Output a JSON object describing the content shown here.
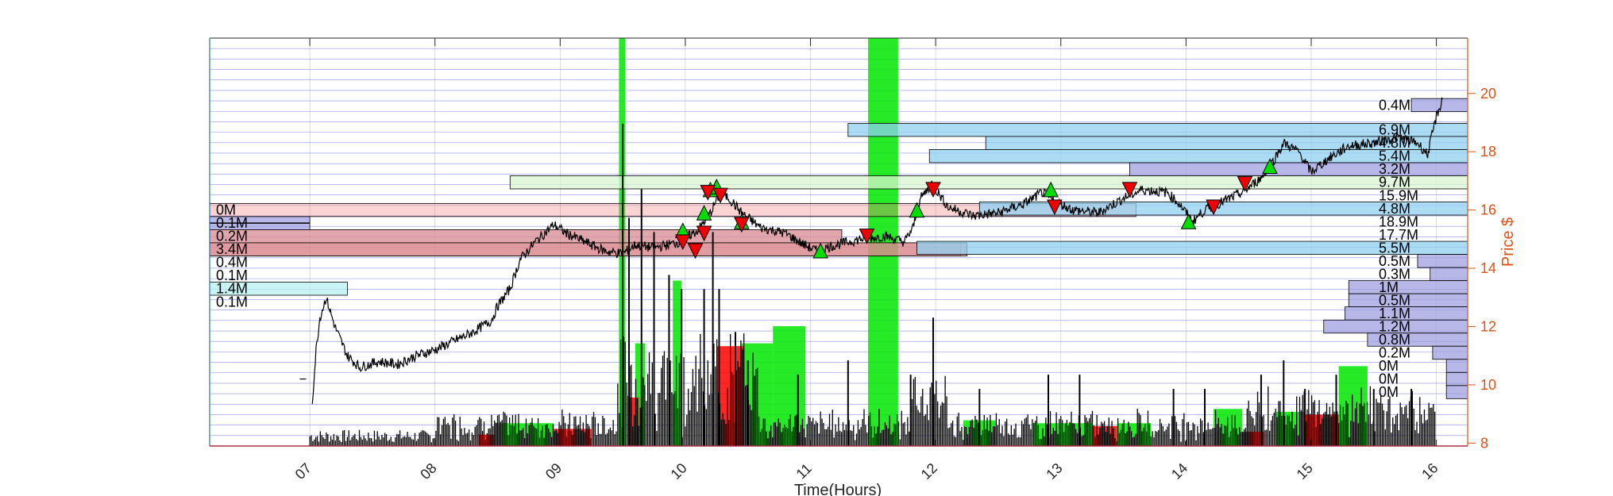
{
  "chart_data": {
    "type": "line",
    "title": "",
    "xlabel": "Time(Hours)",
    "ylabel": "Price $",
    "x_ticks": [
      "07",
      "08",
      "09",
      "10",
      "11",
      "12",
      "13",
      "14",
      "15",
      "16"
    ],
    "y_ticks": [
      "8",
      "10",
      "12",
      "14",
      "16",
      "18",
      "20"
    ],
    "xlim": [
      6.2,
      16.25
    ],
    "ylim": [
      7.9,
      21.9
    ],
    "grid": true,
    "colors": {
      "axes": "#2F6FA8",
      "right_axis": "#D95319",
      "grid": "#3333CC",
      "price": "#000000",
      "volume": "#000000",
      "buy_zone": "#00E600",
      "sell_zone": "#FF0000",
      "profile_sell": "#F08080",
      "profile_buy": "#8FD0F0",
      "profile_neutral": "#A0A0E0",
      "triangle_up": "#00DD00",
      "triangle_down": "#EE0000"
    },
    "price_anchors": [
      [
        7.02,
        9.4
      ],
      [
        7.05,
        11.2
      ],
      [
        7.08,
        12.3
      ],
      [
        7.13,
        13.0
      ],
      [
        7.2,
        12.0
      ],
      [
        7.3,
        11.0
      ],
      [
        7.4,
        10.6
      ],
      [
        7.55,
        10.8
      ],
      [
        7.7,
        10.7
      ],
      [
        7.85,
        11.0
      ],
      [
        8.0,
        11.2
      ],
      [
        8.15,
        11.5
      ],
      [
        8.3,
        11.8
      ],
      [
        8.45,
        12.2
      ],
      [
        8.5,
        12.7
      ],
      [
        8.6,
        13.3
      ],
      [
        8.68,
        14.3
      ],
      [
        8.8,
        14.9
      ],
      [
        8.95,
        15.5
      ],
      [
        9.05,
        15.2
      ],
      [
        9.2,
        14.9
      ],
      [
        9.35,
        14.6
      ],
      [
        9.5,
        14.5
      ],
      [
        9.6,
        14.8
      ],
      [
        9.75,
        14.7
      ],
      [
        9.95,
        14.9
      ],
      [
        10.1,
        15.3
      ],
      [
        10.2,
        15.9
      ],
      [
        10.28,
        16.6
      ],
      [
        10.35,
        16.4
      ],
      [
        10.45,
        15.9
      ],
      [
        10.6,
        15.4
      ],
      [
        10.8,
        15.2
      ],
      [
        10.95,
        14.8
      ],
      [
        11.05,
        14.6
      ],
      [
        11.2,
        14.8
      ],
      [
        11.4,
        15.0
      ],
      [
        11.6,
        15.1
      ],
      [
        11.75,
        14.9
      ],
      [
        11.82,
        15.4
      ],
      [
        11.88,
        16.4
      ],
      [
        11.97,
        16.9
      ],
      [
        12.1,
        16.1
      ],
      [
        12.3,
        15.8
      ],
      [
        12.5,
        15.9
      ],
      [
        12.7,
        16.2
      ],
      [
        12.85,
        16.6
      ],
      [
        12.95,
        16.3
      ],
      [
        13.1,
        16.0
      ],
      [
        13.3,
        15.9
      ],
      [
        13.5,
        16.4
      ],
      [
        13.65,
        16.7
      ],
      [
        13.85,
        16.6
      ],
      [
        13.95,
        16.2
      ],
      [
        14.05,
        15.6
      ],
      [
        14.15,
        16.0
      ],
      [
        14.3,
        16.3
      ],
      [
        14.45,
        16.6
      ],
      [
        14.6,
        17.1
      ],
      [
        14.7,
        17.7
      ],
      [
        14.78,
        18.3
      ],
      [
        14.9,
        18.0
      ],
      [
        15.0,
        17.3
      ],
      [
        15.15,
        17.8
      ],
      [
        15.3,
        18.2
      ],
      [
        15.5,
        18.3
      ],
      [
        15.7,
        18.5
      ],
      [
        15.85,
        18.3
      ],
      [
        15.93,
        17.9
      ],
      [
        16.0,
        19.2
      ],
      [
        16.05,
        19.8
      ]
    ],
    "volume_zones": [
      {
        "side": "buy",
        "x0": 9.47,
        "x1": 9.52,
        "volume": 14.3
      },
      {
        "side": "buy",
        "x0": 11.46,
        "x1": 11.7,
        "volume": 14.3
      },
      {
        "side": "buy",
        "x0": 9.9,
        "x1": 9.97,
        "volume": 5.8
      },
      {
        "side": "buy",
        "x0": 9.6,
        "x1": 9.68,
        "volume": 3.6
      },
      {
        "side": "buy",
        "x0": 10.45,
        "x1": 10.7,
        "volume": 3.6
      },
      {
        "side": "buy",
        "x0": 10.7,
        "x1": 10.96,
        "volume": 4.2
      },
      {
        "side": "sell",
        "x0": 10.25,
        "x1": 10.47,
        "volume": 3.5
      },
      {
        "side": "sell",
        "x0": 9.55,
        "x1": 9.63,
        "volume": 1.7
      },
      {
        "side": "buy",
        "x0": 15.22,
        "x1": 15.45,
        "volume": 2.8
      },
      {
        "side": "sell",
        "x0": 14.95,
        "x1": 15.22,
        "volume": 1.1
      },
      {
        "side": "buy",
        "x0": 14.72,
        "x1": 14.95,
        "volume": 1.2
      },
      {
        "side": "buy",
        "x0": 14.22,
        "x1": 14.45,
        "volume": 1.3
      },
      {
        "side": "sell",
        "x0": 14.45,
        "x1": 14.62,
        "volume": 0.5
      },
      {
        "side": "buy",
        "x0": 13.45,
        "x1": 13.72,
        "volume": 0.8
      },
      {
        "side": "sell",
        "x0": 13.25,
        "x1": 13.45,
        "volume": 0.7
      },
      {
        "side": "buy",
        "x0": 12.78,
        "x1": 13.25,
        "volume": 0.8
      },
      {
        "side": "buy",
        "x0": 12.22,
        "x1": 12.48,
        "volume": 0.9
      },
      {
        "side": "buy",
        "x0": 8.48,
        "x1": 8.95,
        "volume": 0.8
      },
      {
        "side": "sell",
        "x0": 8.95,
        "x1": 9.25,
        "volume": 0.6
      },
      {
        "side": "sell",
        "x0": 8.35,
        "x1": 8.48,
        "volume": 0.4
      }
    ],
    "volume_spikes": [
      [
        9.5,
        11.3
      ],
      [
        9.55,
        8.0
      ],
      [
        9.65,
        9.0
      ],
      [
        9.75,
        7.5
      ],
      [
        9.87,
        6.0
      ],
      [
        9.97,
        5.5
      ],
      [
        10.15,
        5.5
      ],
      [
        10.22,
        7.5
      ],
      [
        10.27,
        5.5
      ],
      [
        10.4,
        4.0
      ],
      [
        10.5,
        3.0
      ],
      [
        10.9,
        2.5
      ],
      [
        11.3,
        3.0
      ],
      [
        11.8,
        2.5
      ],
      [
        11.98,
        4.5
      ],
      [
        12.35,
        2.0
      ],
      [
        12.9,
        2.5
      ],
      [
        13.15,
        2.5
      ],
      [
        13.9,
        2.0
      ],
      [
        14.15,
        2.0
      ],
      [
        14.6,
        2.5
      ],
      [
        14.78,
        3.0
      ],
      [
        14.95,
        2.0
      ],
      [
        15.2,
        2.5
      ],
      [
        15.5,
        2.0
      ],
      [
        15.8,
        2.0
      ]
    ],
    "triangles_up": [
      [
        9.98,
        15.3
      ],
      [
        10.15,
        15.9
      ],
      [
        10.2,
        16.7
      ],
      [
        10.25,
        16.8
      ],
      [
        10.45,
        15.6
      ],
      [
        11.08,
        14.6
      ],
      [
        11.85,
        16.0
      ],
      [
        12.92,
        16.7
      ],
      [
        14.02,
        15.6
      ],
      [
        14.67,
        17.5
      ]
    ],
    "triangles_down": [
      [
        9.98,
        14.9
      ],
      [
        10.08,
        14.6
      ],
      [
        10.15,
        15.2
      ],
      [
        10.18,
        16.6
      ],
      [
        10.28,
        16.5
      ],
      [
        10.45,
        15.5
      ],
      [
        11.45,
        15.1
      ],
      [
        11.98,
        16.7
      ],
      [
        12.95,
        16.1
      ],
      [
        13.55,
        16.7
      ],
      [
        14.22,
        16.1
      ],
      [
        14.47,
        16.9
      ]
    ],
    "left_profile": [
      {
        "label": "0M",
        "price": 16.0,
        "width": 0.0,
        "color": "sell"
      },
      {
        "label": "0.1M",
        "price": 15.55,
        "width": 0.8,
        "color": "neutral"
      },
      {
        "label": "0.2M",
        "price": 15.1,
        "width": 5.05,
        "color": "sell_dark"
      },
      {
        "label": "3.4M",
        "price": 14.65,
        "width": 6.05,
        "color": "sell_dark"
      },
      {
        "label": "0.4M",
        "price": 14.2,
        "width": 0.0,
        "color": "neutral"
      },
      {
        "label": "0.1M",
        "price": 13.75,
        "width": 0.0,
        "color": "neutral"
      },
      {
        "label": "1.4M",
        "price": 13.3,
        "width": 1.1,
        "color": "buy_light"
      },
      {
        "label": "0.1M",
        "price": 12.85,
        "width": 0.0,
        "color": "neutral"
      }
    ],
    "left_highlight_bars": [
      {
        "price": 16.0,
        "x1": 13.6,
        "color": "sell"
      },
      {
        "price": 14.65,
        "x1": 12.2,
        "color": "sell"
      }
    ],
    "right_profile": [
      {
        "label": "0.4M",
        "price": 19.6,
        "width": 0.45,
        "color": "neutral"
      },
      {
        "label": "6.9M",
        "price": 18.75,
        "width": 4.95,
        "color": "buy"
      },
      {
        "label": "4.8M",
        "price": 18.3,
        "width": 3.85,
        "color": "buy"
      },
      {
        "label": "5.4M",
        "price": 17.85,
        "width": 4.3,
        "color": "buy"
      },
      {
        "label": "3.2M",
        "price": 17.4,
        "width": 2.7,
        "color": "neutral"
      },
      {
        "label": "9.7M",
        "price": 16.95,
        "width": 7.65,
        "color": "buy_pale"
      },
      {
        "label": "15.9M",
        "price": 16.5,
        "width": 0.0,
        "color": "sell"
      },
      {
        "label": "4.8M",
        "price": 16.05,
        "width": 3.9,
        "color": "buy"
      },
      {
        "label": "18.9M",
        "price": 15.6,
        "width": 0.0,
        "color": "neutral"
      },
      {
        "label": "17.7M",
        "price": 15.15,
        "width": 0.0,
        "color": "neutral"
      },
      {
        "label": "5.5M",
        "price": 14.7,
        "width": 4.4,
        "color": "buy"
      },
      {
        "label": "0.5M",
        "price": 14.25,
        "width": 0.4,
        "color": "neutral"
      },
      {
        "label": "0.3M",
        "price": 13.8,
        "width": 0.3,
        "color": "neutral"
      },
      {
        "label": "1M",
        "price": 13.35,
        "width": 0.95,
        "color": "neutral"
      },
      {
        "label": "0.5M",
        "price": 12.9,
        "width": 0.95,
        "color": "neutral"
      },
      {
        "label": "1.1M",
        "price": 12.45,
        "width": 0.98,
        "color": "neutral"
      },
      {
        "label": "1.2M",
        "price": 12.0,
        "width": 1.15,
        "color": "neutral"
      },
      {
        "label": "0.8M",
        "price": 11.55,
        "width": 0.8,
        "color": "neutral"
      },
      {
        "label": "0.2M",
        "price": 11.1,
        "width": 0.28,
        "color": "neutral"
      },
      {
        "label": "0M",
        "price": 10.65,
        "width": 0.17,
        "color": "neutral"
      },
      {
        "label": "0M",
        "price": 10.2,
        "width": 0.17,
        "color": "neutral"
      },
      {
        "label": "0M",
        "price": 9.75,
        "width": 0.17,
        "color": "neutral"
      }
    ]
  }
}
